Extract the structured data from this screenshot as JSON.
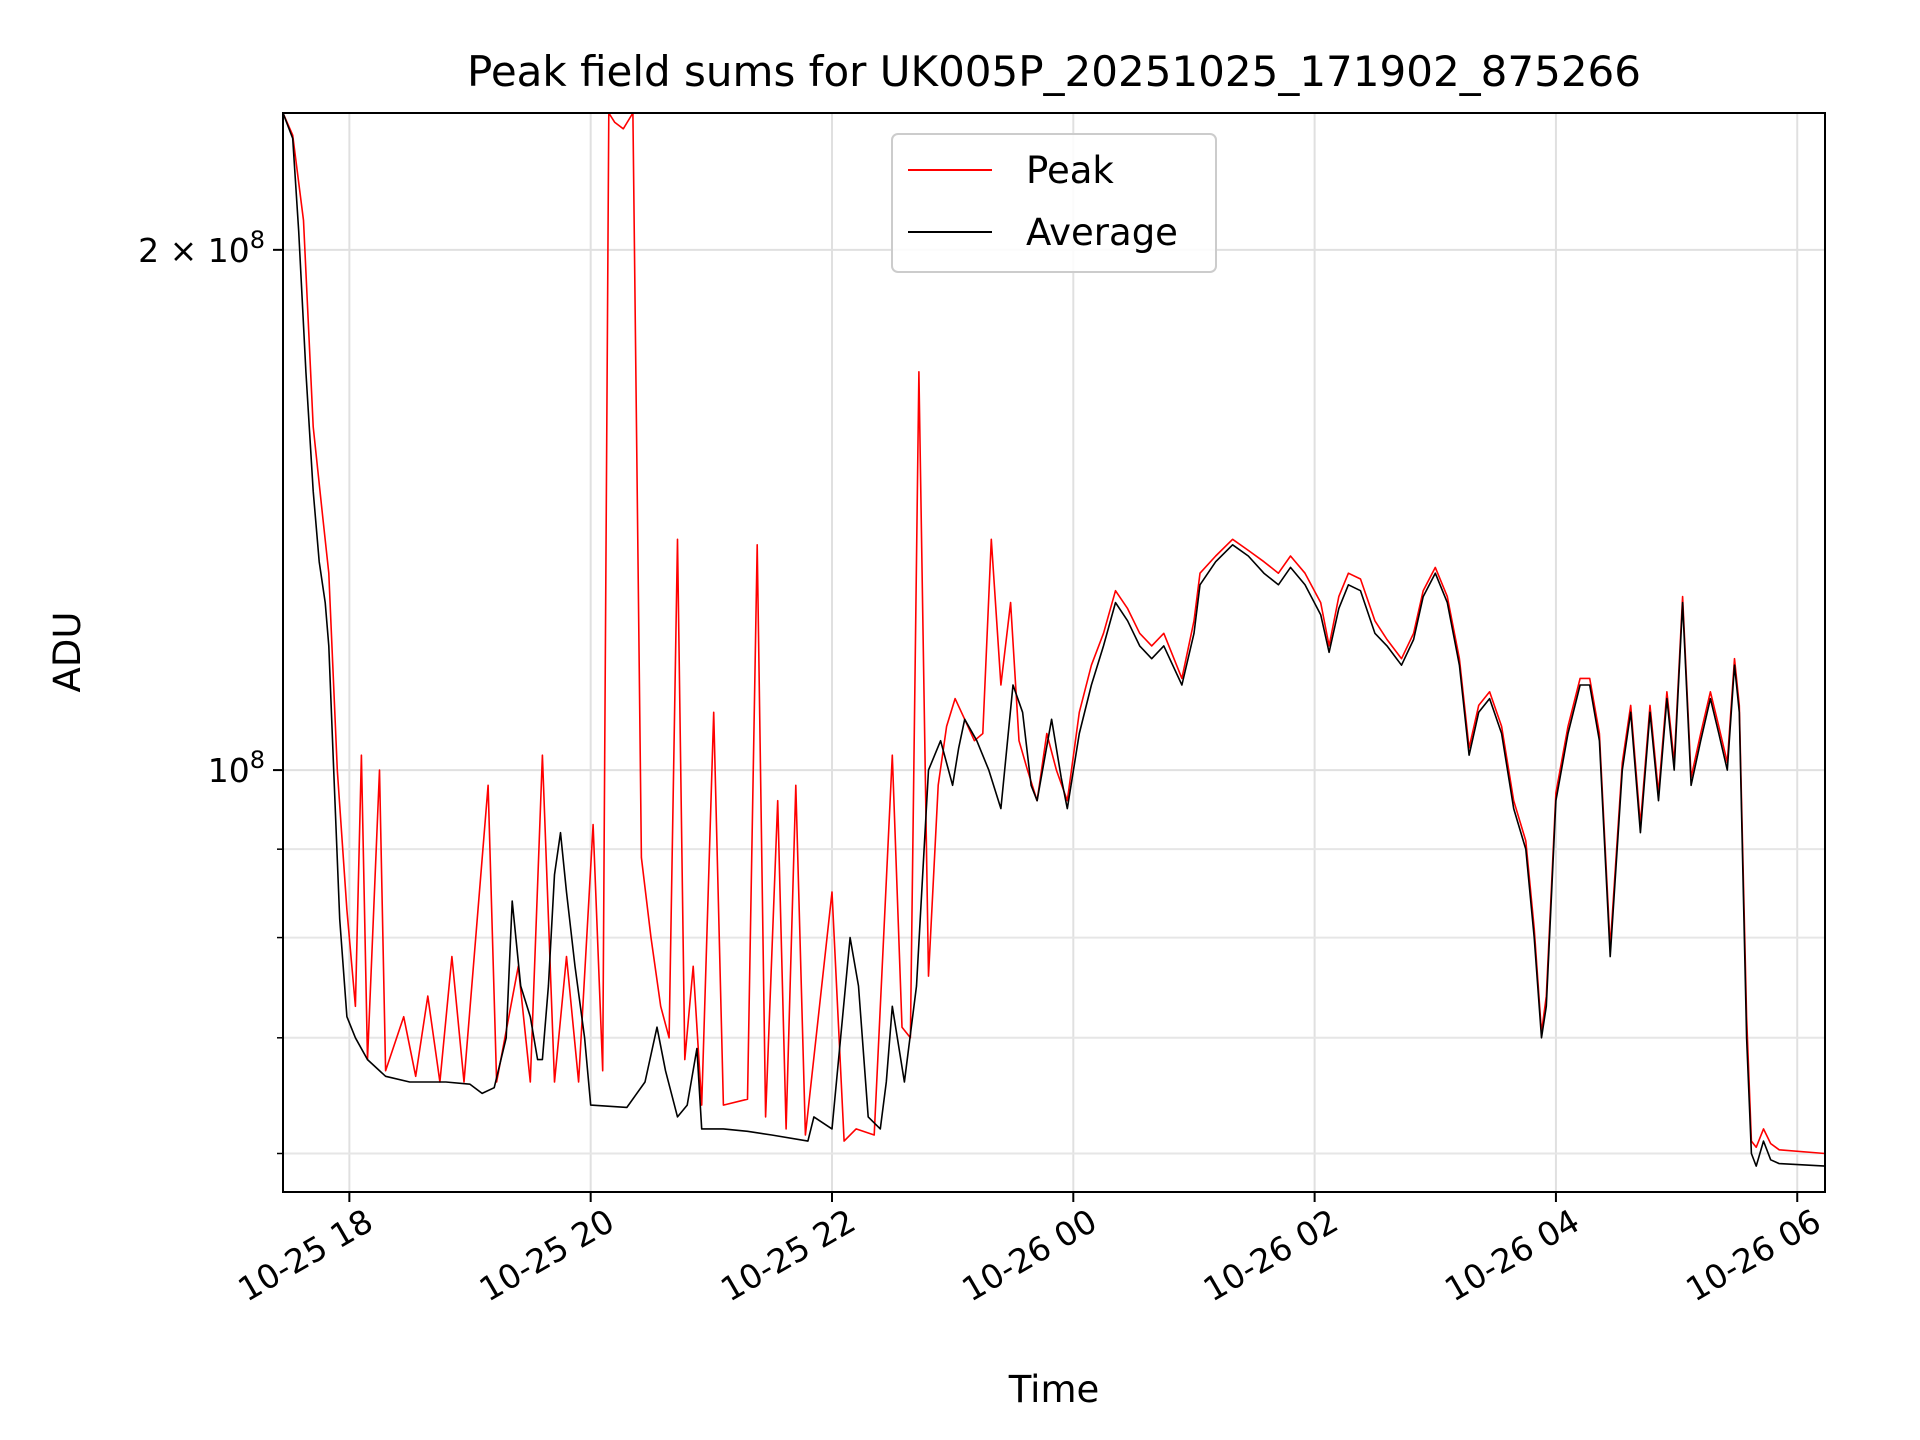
{
  "chart_data": {
    "type": "line",
    "title": "Peak field sums for UK005P_20251025_171902_875266",
    "xlabel": "Time",
    "ylabel": "ADU",
    "y_scale": "log",
    "ylim": [
      57000000,
      240000000
    ],
    "xlim_hours": [
      -0.55,
      12.23
    ],
    "grid": true,
    "legend_position": "upper-center",
    "x_ticks": [
      {
        "label": "10-25 18",
        "hour": 0
      },
      {
        "label": "10-25 20",
        "hour": 2
      },
      {
        "label": "10-25 22",
        "hour": 4
      },
      {
        "label": "10-26 00",
        "hour": 6
      },
      {
        "label": "10-26 02",
        "hour": 8
      },
      {
        "label": "10-26 04",
        "hour": 10
      },
      {
        "label": "10-26 06",
        "hour": 12
      }
    ],
    "y_major_ticks": [
      {
        "label_base": "2 × 10",
        "label_exp": "8",
        "value": 200000000
      },
      {
        "label_base": "10",
        "label_exp": "8",
        "value": 100000000
      }
    ],
    "y_minor_ticks": [
      60000000,
      70000000,
      80000000,
      90000000
    ],
    "average_series": {
      "name": "Average",
      "color": "#000000",
      "points": [
        [
          -0.55,
          240000000
        ],
        [
          -0.47,
          232000000
        ],
        [
          -0.42,
          205000000
        ],
        [
          -0.36,
          170000000
        ],
        [
          -0.3,
          145000000
        ],
        [
          -0.25,
          132000000
        ],
        [
          -0.2,
          125000000
        ],
        [
          -0.17,
          118000000
        ],
        [
          -0.13,
          100000000
        ],
        [
          -0.08,
          82000000
        ],
        [
          -0.02,
          72000000
        ],
        [
          0.05,
          70000000
        ],
        [
          0.15,
          68000000
        ],
        [
          0.3,
          66500000
        ],
        [
          0.5,
          66000000
        ],
        [
          0.8,
          66000000
        ],
        [
          1.0,
          65800000
        ],
        [
          1.1,
          65000000
        ],
        [
          1.2,
          65500000
        ],
        [
          1.3,
          70000000
        ],
        [
          1.35,
          84000000
        ],
        [
          1.42,
          75000000
        ],
        [
          1.5,
          72000000
        ],
        [
          1.56,
          68000000
        ],
        [
          1.6,
          68000000
        ],
        [
          1.65,
          75000000
        ],
        [
          1.7,
          87000000
        ],
        [
          1.75,
          92000000
        ],
        [
          1.8,
          85000000
        ],
        [
          1.87,
          77000000
        ],
        [
          1.95,
          70000000
        ],
        [
          2.0,
          64000000
        ],
        [
          2.3,
          63800000
        ],
        [
          2.45,
          66000000
        ],
        [
          2.55,
          71000000
        ],
        [
          2.62,
          67000000
        ],
        [
          2.72,
          63000000
        ],
        [
          2.8,
          64000000
        ],
        [
          2.88,
          69000000
        ],
        [
          2.92,
          62000000
        ],
        [
          3.1,
          62000000
        ],
        [
          3.3,
          61800000
        ],
        [
          3.5,
          61500000
        ],
        [
          3.8,
          61000000
        ],
        [
          3.85,
          63000000
        ],
        [
          4.0,
          62000000
        ],
        [
          4.15,
          80000000
        ],
        [
          4.22,
          75000000
        ],
        [
          4.3,
          63000000
        ],
        [
          4.4,
          62000000
        ],
        [
          4.45,
          66000000
        ],
        [
          4.5,
          73000000
        ],
        [
          4.6,
          66000000
        ],
        [
          4.7,
          75000000
        ],
        [
          4.8,
          100000000
        ],
        [
          4.9,
          104000000
        ],
        [
          5.0,
          98000000
        ],
        [
          5.05,
          103000000
        ],
        [
          5.1,
          107000000
        ],
        [
          5.2,
          104000000
        ],
        [
          5.3,
          100000000
        ],
        [
          5.4,
          95000000
        ],
        [
          5.5,
          112000000
        ],
        [
          5.58,
          108000000
        ],
        [
          5.65,
          98000000
        ],
        [
          5.7,
          96000000
        ],
        [
          5.82,
          107000000
        ],
        [
          5.9,
          99000000
        ],
        [
          5.95,
          95000000
        ],
        [
          6.05,
          105000000
        ],
        [
          6.15,
          112000000
        ],
        [
          6.25,
          118000000
        ],
        [
          6.35,
          125000000
        ],
        [
          6.45,
          122000000
        ],
        [
          6.55,
          118000000
        ],
        [
          6.65,
          116000000
        ],
        [
          6.75,
          118000000
        ],
        [
          6.9,
          112000000
        ],
        [
          7.0,
          120000000
        ],
        [
          7.05,
          128000000
        ],
        [
          7.18,
          132000000
        ],
        [
          7.32,
          135000000
        ],
        [
          7.45,
          133000000
        ],
        [
          7.58,
          130000000
        ],
        [
          7.7,
          128000000
        ],
        [
          7.8,
          131000000
        ],
        [
          7.92,
          128000000
        ],
        [
          8.05,
          123000000
        ],
        [
          8.12,
          117000000
        ],
        [
          8.2,
          124000000
        ],
        [
          8.28,
          128000000
        ],
        [
          8.38,
          127000000
        ],
        [
          8.5,
          120000000
        ],
        [
          8.6,
          118000000
        ],
        [
          8.72,
          115000000
        ],
        [
          8.82,
          119000000
        ],
        [
          8.9,
          126000000
        ],
        [
          9.0,
          130000000
        ],
        [
          9.1,
          125000000
        ],
        [
          9.2,
          115000000
        ],
        [
          9.28,
          102000000
        ],
        [
          9.36,
          108000000
        ],
        [
          9.45,
          110000000
        ],
        [
          9.55,
          105000000
        ],
        [
          9.65,
          95000000
        ],
        [
          9.75,
          90000000
        ],
        [
          9.82,
          80000000
        ],
        [
          9.88,
          70000000
        ],
        [
          9.92,
          73000000
        ],
        [
          10.0,
          96000000
        ],
        [
          10.1,
          105000000
        ],
        [
          10.2,
          112000000
        ],
        [
          10.28,
          112000000
        ],
        [
          10.36,
          104000000
        ],
        [
          10.45,
          78000000
        ],
        [
          10.55,
          100000000
        ],
        [
          10.62,
          108000000
        ],
        [
          10.7,
          92000000
        ],
        [
          10.78,
          108000000
        ],
        [
          10.85,
          96000000
        ],
        [
          10.92,
          110000000
        ],
        [
          10.98,
          100000000
        ],
        [
          11.05,
          125000000
        ],
        [
          11.12,
          98000000
        ],
        [
          11.2,
          104000000
        ],
        [
          11.28,
          110000000
        ],
        [
          11.35,
          105000000
        ],
        [
          11.42,
          100000000
        ],
        [
          11.48,
          115000000
        ],
        [
          11.52,
          108000000
        ],
        [
          11.58,
          70000000
        ],
        [
          11.62,
          60000000
        ],
        [
          11.66,
          59000000
        ],
        [
          11.72,
          61000000
        ],
        [
          11.78,
          59500000
        ],
        [
          11.85,
          59200000
        ],
        [
          12.23,
          59000000
        ]
      ]
    },
    "peak_extra_points": [],
    "peak_series": {
      "name": "Peak",
      "color": "#ff0000",
      "points": [
        [
          -0.55,
          240000000
        ],
        [
          -0.47,
          233000000
        ],
        [
          -0.38,
          208000000
        ],
        [
          -0.3,
          158000000
        ],
        [
          -0.22,
          140000000
        ],
        [
          -0.17,
          130000000
        ],
        [
          -0.1,
          100000000
        ],
        [
          -0.02,
          83000000
        ],
        [
          0.05,
          73000000
        ],
        [
          0.1,
          102000000
        ],
        [
          0.15,
          68000000
        ],
        [
          0.25,
          100000000
        ],
        [
          0.3,
          67000000
        ],
        [
          0.45,
          72000000
        ],
        [
          0.55,
          66500000
        ],
        [
          0.65,
          74000000
        ],
        [
          0.75,
          66000000
        ],
        [
          0.85,
          78000000
        ],
        [
          0.95,
          66000000
        ],
        [
          1.15,
          98000000
        ],
        [
          1.22,
          66000000
        ],
        [
          1.4,
          77000000
        ],
        [
          1.5,
          66000000
        ],
        [
          1.6,
          102000000
        ],
        [
          1.7,
          66000000
        ],
        [
          1.8,
          78000000
        ],
        [
          1.9,
          66000000
        ],
        [
          2.02,
          93000000
        ],
        [
          2.1,
          67000000
        ],
        [
          2.15,
          240000000
        ],
        [
          2.2,
          237000000
        ],
        [
          2.27,
          235000000
        ],
        [
          2.35,
          240000000
        ],
        [
          2.42,
          89000000
        ],
        [
          2.5,
          80000000
        ],
        [
          2.58,
          73000000
        ],
        [
          2.65,
          70000000
        ],
        [
          2.72,
          136000000
        ],
        [
          2.78,
          68000000
        ],
        [
          2.85,
          77000000
        ],
        [
          2.92,
          64000000
        ],
        [
          3.02,
          108000000
        ],
        [
          3.1,
          64000000
        ],
        [
          3.3,
          64500000
        ],
        [
          3.38,
          135000000
        ],
        [
          3.45,
          63000000
        ],
        [
          3.55,
          96000000
        ],
        [
          3.62,
          62000000
        ],
        [
          3.7,
          98000000
        ],
        [
          3.78,
          61500000
        ],
        [
          4.0,
          85000000
        ],
        [
          4.1,
          61000000
        ],
        [
          4.2,
          62000000
        ],
        [
          4.35,
          61500000
        ],
        [
          4.5,
          102000000
        ],
        [
          4.58,
          71000000
        ],
        [
          4.65,
          70000000
        ],
        [
          4.72,
          170000000
        ],
        [
          4.8,
          76000000
        ],
        [
          4.88,
          98000000
        ],
        [
          4.95,
          106000000
        ],
        [
          5.02,
          110000000
        ],
        [
          5.1,
          107000000
        ],
        [
          5.18,
          104000000
        ],
        [
          5.25,
          105000000
        ],
        [
          5.32,
          136000000
        ],
        [
          5.4,
          112000000
        ],
        [
          5.48,
          125000000
        ],
        [
          5.55,
          104000000
        ],
        [
          5.62,
          100000000
        ],
        [
          5.7,
          96000000
        ],
        [
          5.78,
          105000000
        ],
        [
          5.86,
          100000000
        ],
        [
          5.95,
          96000000
        ],
        [
          6.05,
          108000000
        ],
        [
          6.15,
          115000000
        ],
        [
          6.25,
          120000000
        ],
        [
          6.35,
          127000000
        ],
        [
          6.45,
          124000000
        ],
        [
          6.55,
          120000000
        ],
        [
          6.65,
          118000000
        ],
        [
          6.75,
          120000000
        ],
        [
          6.9,
          113000000
        ],
        [
          7.0,
          122000000
        ],
        [
          7.05,
          130000000
        ],
        [
          7.18,
          133000000
        ],
        [
          7.32,
          136000000
        ],
        [
          7.45,
          134000000
        ],
        [
          7.58,
          132000000
        ],
        [
          7.7,
          130000000
        ],
        [
          7.8,
          133000000
        ],
        [
          7.92,
          130000000
        ],
        [
          8.05,
          125000000
        ],
        [
          8.12,
          118000000
        ],
        [
          8.2,
          126000000
        ],
        [
          8.28,
          130000000
        ],
        [
          8.38,
          129000000
        ],
        [
          8.5,
          122000000
        ],
        [
          8.6,
          119000000
        ],
        [
          8.72,
          116000000
        ],
        [
          8.82,
          120000000
        ],
        [
          8.9,
          127000000
        ],
        [
          9.0,
          131000000
        ],
        [
          9.1,
          126000000
        ],
        [
          9.2,
          116000000
        ],
        [
          9.28,
          103000000
        ],
        [
          9.36,
          109000000
        ],
        [
          9.45,
          111000000
        ],
        [
          9.55,
          106000000
        ],
        [
          9.65,
          96000000
        ],
        [
          9.75,
          91000000
        ],
        [
          9.82,
          81000000
        ],
        [
          9.88,
          70500000
        ],
        [
          9.92,
          74000000
        ],
        [
          10.0,
          97000000
        ],
        [
          10.1,
          106000000
        ],
        [
          10.2,
          113000000
        ],
        [
          10.28,
          113000000
        ],
        [
          10.36,
          105000000
        ],
        [
          10.45,
          79000000
        ],
        [
          10.55,
          101000000
        ],
        [
          10.62,
          109000000
        ],
        [
          10.7,
          93000000
        ],
        [
          10.78,
          109000000
        ],
        [
          10.85,
          97000000
        ],
        [
          10.92,
          111000000
        ],
        [
          10.98,
          101000000
        ],
        [
          11.05,
          126000000
        ],
        [
          11.12,
          99000000
        ],
        [
          11.2,
          105000000
        ],
        [
          11.28,
          111000000
        ],
        [
          11.35,
          106000000
        ],
        [
          11.42,
          101000000
        ],
        [
          11.48,
          116000000
        ],
        [
          11.52,
          109000000
        ],
        [
          11.58,
          72000000
        ],
        [
          11.62,
          61000000
        ],
        [
          11.66,
          60500000
        ],
        [
          11.72,
          62000000
        ],
        [
          11.78,
          60800000
        ],
        [
          11.85,
          60300000
        ],
        [
          12.23,
          60000000
        ]
      ]
    }
  }
}
